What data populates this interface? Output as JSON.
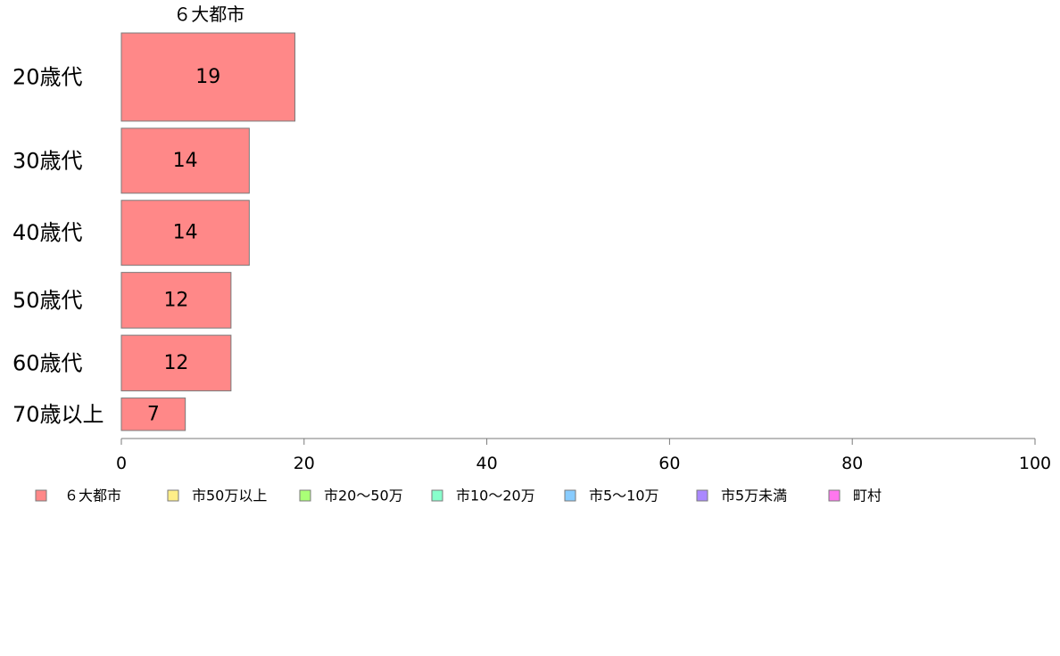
{
  "chart_data": {
    "type": "bar",
    "orientation": "horizontal",
    "categories": [
      "20歳代",
      "30歳代",
      "40歳代",
      "50歳代",
      "60歳代",
      "70歳以上"
    ],
    "series": [
      {
        "name": "６大都市",
        "values": [
          19,
          14,
          14,
          12,
          12,
          7
        ],
        "color": "#ff8888"
      }
    ],
    "data_labels": [
      "19",
      "14",
      "14",
      "12",
      "12",
      "7"
    ],
    "category_weights": [
      19,
      14,
      14,
      12,
      12,
      7
    ],
    "xlim": [
      0,
      100
    ],
    "x_ticks": [
      0,
      20,
      40,
      60,
      80,
      100
    ],
    "x_tick_labels": [
      "0",
      "20",
      "40",
      "60",
      "80",
      "100"
    ],
    "grid": false,
    "legend_position": "bottom-left",
    "legend": [
      {
        "name": "６大都市",
        "color": "#ff8888"
      },
      {
        "name": "市50万以上",
        "color": "#ffee88"
      },
      {
        "name": "市20～50万",
        "color": "#aaff77"
      },
      {
        "name": "市10～20万",
        "color": "#88ffcc"
      },
      {
        "name": "市5～10万",
        "color": "#88ccff"
      },
      {
        "name": "市5万未満",
        "color": "#aa88ff"
      },
      {
        "name": "町村",
        "color": "#ff77ee"
      }
    ],
    "bar_stroke_color": "#7a7a7a",
    "axis_color": "#7a7a7a"
  }
}
